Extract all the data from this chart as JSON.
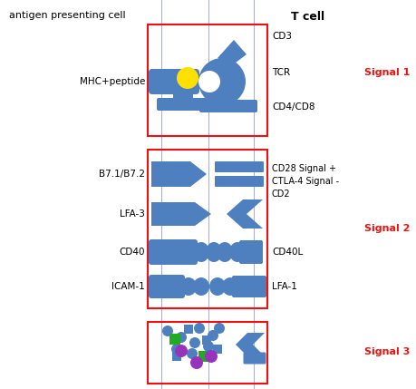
{
  "bg_color": "#ffffff",
  "apc_label": "antigen presenting cell",
  "tcell_label": "T cell",
  "signal1_label": "Signal 1",
  "signal2_label": "Signal 2",
  "signal3_label": "Signal 3",
  "blue": "#4e7fbf",
  "yellow": "#FFE000",
  "red": "#EE1111",
  "green": "#22AA22",
  "purple": "#9933BB",
  "left_labels": [
    "MHC+peptide",
    "B7.1/B7.2",
    "LFA-3",
    "CD40",
    "ICAM-1"
  ],
  "right_labels_s1": [
    "CD3",
    "TCR",
    "CD4/CD8"
  ],
  "right_labels_s2a": "CD28 Signal +\nCTLA-4 Signal -\nCD2",
  "right_labels_s2b": "CD40L",
  "right_labels_s2c": "LFA-1"
}
